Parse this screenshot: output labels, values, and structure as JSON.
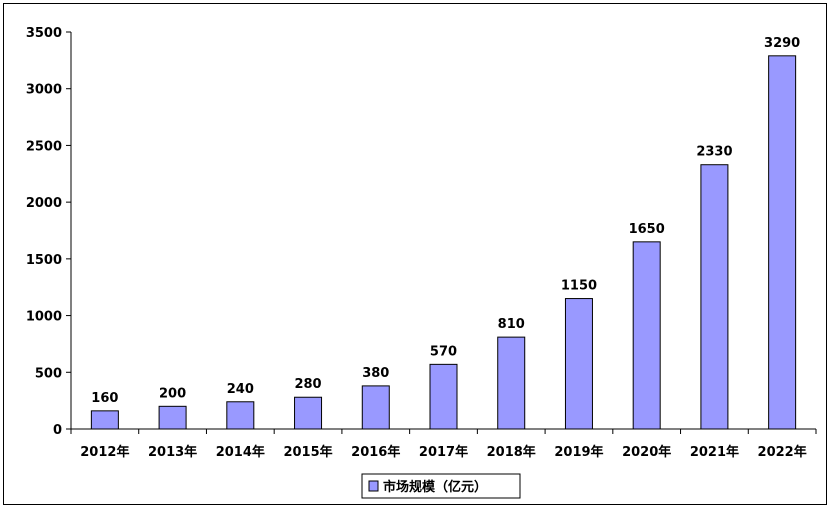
{
  "chart_data": {
    "type": "bar",
    "categories": [
      "2012年",
      "2013年",
      "2014年",
      "2015年",
      "2016年",
      "2017年",
      "2018年",
      "2019年",
      "2020年",
      "2021年",
      "2022年"
    ],
    "series": [
      {
        "name": "市场规模（亿元）",
        "values": [
          160,
          200,
          240,
          280,
          380,
          570,
          810,
          1150,
          1650,
          2330,
          3290
        ]
      }
    ],
    "data_labels": [
      "160",
      "200",
      "240",
      "280",
      "380",
      "570",
      "810",
      "1150",
      "1650",
      "2330",
      "3290"
    ],
    "title": "",
    "xlabel": "",
    "ylabel": "",
    "ylim": [
      0,
      3500
    ],
    "yticks": [
      0,
      500,
      1000,
      1500,
      2000,
      2500,
      3000,
      3500
    ],
    "ytick_labels": [
      "0",
      "500",
      "1000",
      "1500",
      "2000",
      "2500",
      "3000",
      "3500"
    ],
    "grid": false,
    "legend_position": "bottom",
    "bar_color": "#9999FF"
  }
}
